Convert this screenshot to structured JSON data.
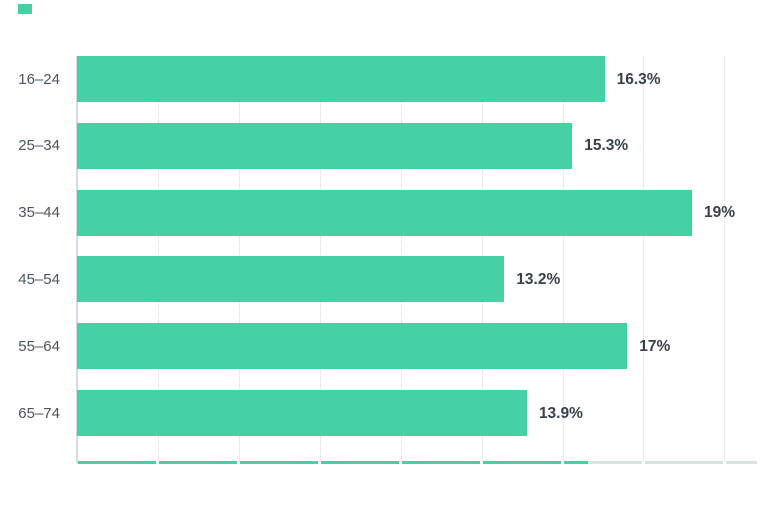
{
  "colors": {
    "accent": "#46d1a5",
    "value_label": "#39414f",
    "category_label": "#4a5462",
    "gridline": "#d6d9dc",
    "axis_line": "#d3dde3",
    "baseline_gray": "#dce1e6",
    "background": "#ffffff"
  },
  "brand_mark": {
    "name": "teal-square-mark",
    "color": "#46d1a5"
  },
  "chart_data": {
    "type": "bar",
    "orientation": "horizontal",
    "title": "",
    "categories": [
      "16–24",
      "25–34",
      "35–44",
      "45–54",
      "55–64",
      "65–74"
    ],
    "values": [
      16.3,
      15.3,
      19,
      13.2,
      17,
      13.9
    ],
    "value_labels": [
      "16.3%",
      "15.3%",
      "19%",
      "13.2%",
      "17%",
      "13.9%"
    ],
    "series_name": "",
    "xlim": [
      0,
      20
    ],
    "gridline_step_percent": 2.5,
    "grid": "vertical-dotted",
    "axis_tick_labels": "none",
    "legend": "none",
    "bar_color": "#46d1a5",
    "baseline": {
      "gray_color": "#dce1e6",
      "teal_overlay_color": "#46d1a5"
    }
  }
}
